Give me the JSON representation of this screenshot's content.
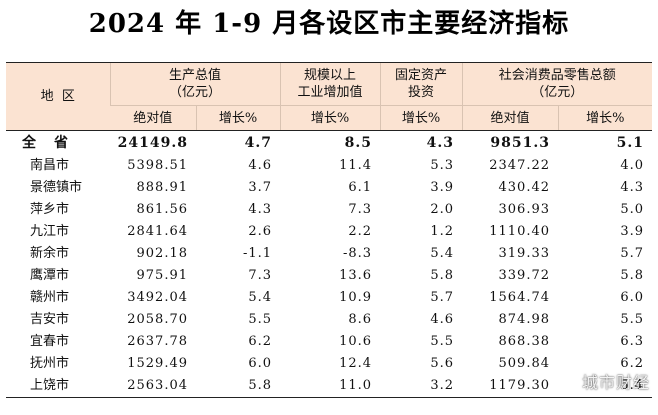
{
  "title": "2024 年 1-9 月各设区市主要经济指标",
  "header": {
    "region_label": "地  区",
    "gdp_group": "生产总值\n（亿元）",
    "industry_group": "规模以上\n工业增加值",
    "investment_group": "固定资产\n投资",
    "retail_group": "社会消费品零售总额\n（亿元）",
    "abs_value": "绝对值",
    "growth_pct": "增长%"
  },
  "rows": [
    {
      "region": "全省",
      "gdp": "24149.8",
      "gdp_growth": "4.7",
      "industry_growth": "8.5",
      "investment_growth": "4.3",
      "retail": "9851.3",
      "retail_growth": "5.1"
    },
    {
      "region": "南昌市",
      "gdp": "5398.51",
      "gdp_growth": "4.6",
      "industry_growth": "11.4",
      "investment_growth": "5.3",
      "retail": "2347.22",
      "retail_growth": "4.0"
    },
    {
      "region": "景德镇市",
      "gdp": "888.91",
      "gdp_growth": "3.7",
      "industry_growth": "6.1",
      "investment_growth": "3.9",
      "retail": "430.42",
      "retail_growth": "4.3"
    },
    {
      "region": "萍乡市",
      "gdp": "861.56",
      "gdp_growth": "4.3",
      "industry_growth": "7.3",
      "investment_growth": "2.0",
      "retail": "306.93",
      "retail_growth": "5.0"
    },
    {
      "region": "九江市",
      "gdp": "2841.64",
      "gdp_growth": "2.6",
      "industry_growth": "2.2",
      "investment_growth": "1.2",
      "retail": "1110.40",
      "retail_growth": "3.9"
    },
    {
      "region": "新余市",
      "gdp": "902.18",
      "gdp_growth": "-1.1",
      "industry_growth": "-8.3",
      "investment_growth": "5.4",
      "retail": "319.33",
      "retail_growth": "5.7"
    },
    {
      "region": "鹰潭市",
      "gdp": "975.91",
      "gdp_growth": "7.3",
      "industry_growth": "13.6",
      "investment_growth": "5.8",
      "retail": "339.72",
      "retail_growth": "5.8"
    },
    {
      "region": "赣州市",
      "gdp": "3492.04",
      "gdp_growth": "5.4",
      "industry_growth": "10.9",
      "investment_growth": "5.7",
      "retail": "1564.74",
      "retail_growth": "6.0"
    },
    {
      "region": "吉安市",
      "gdp": "2058.70",
      "gdp_growth": "5.5",
      "industry_growth": "8.6",
      "investment_growth": "4.6",
      "retail": "874.98",
      "retail_growth": "5.5"
    },
    {
      "region": "宜春市",
      "gdp": "2637.78",
      "gdp_growth": "6.2",
      "industry_growth": "10.6",
      "investment_growth": "5.5",
      "retail": "868.38",
      "retail_growth": "6.3"
    },
    {
      "region": "抚州市",
      "gdp": "1529.49",
      "gdp_growth": "6.0",
      "industry_growth": "12.4",
      "investment_growth": "5.6",
      "retail": "509.84",
      "retail_growth": "6.2"
    },
    {
      "region": "上饶市",
      "gdp": "2563.04",
      "gdp_growth": "5.8",
      "industry_growth": "11.0",
      "investment_growth": "3.2",
      "retail": "1179.30",
      "retail_growth": "5.4"
    }
  ],
  "watermark": "城市财经",
  "colors": {
    "header_bg": "#fbe3d2",
    "rule": "#222222"
  }
}
